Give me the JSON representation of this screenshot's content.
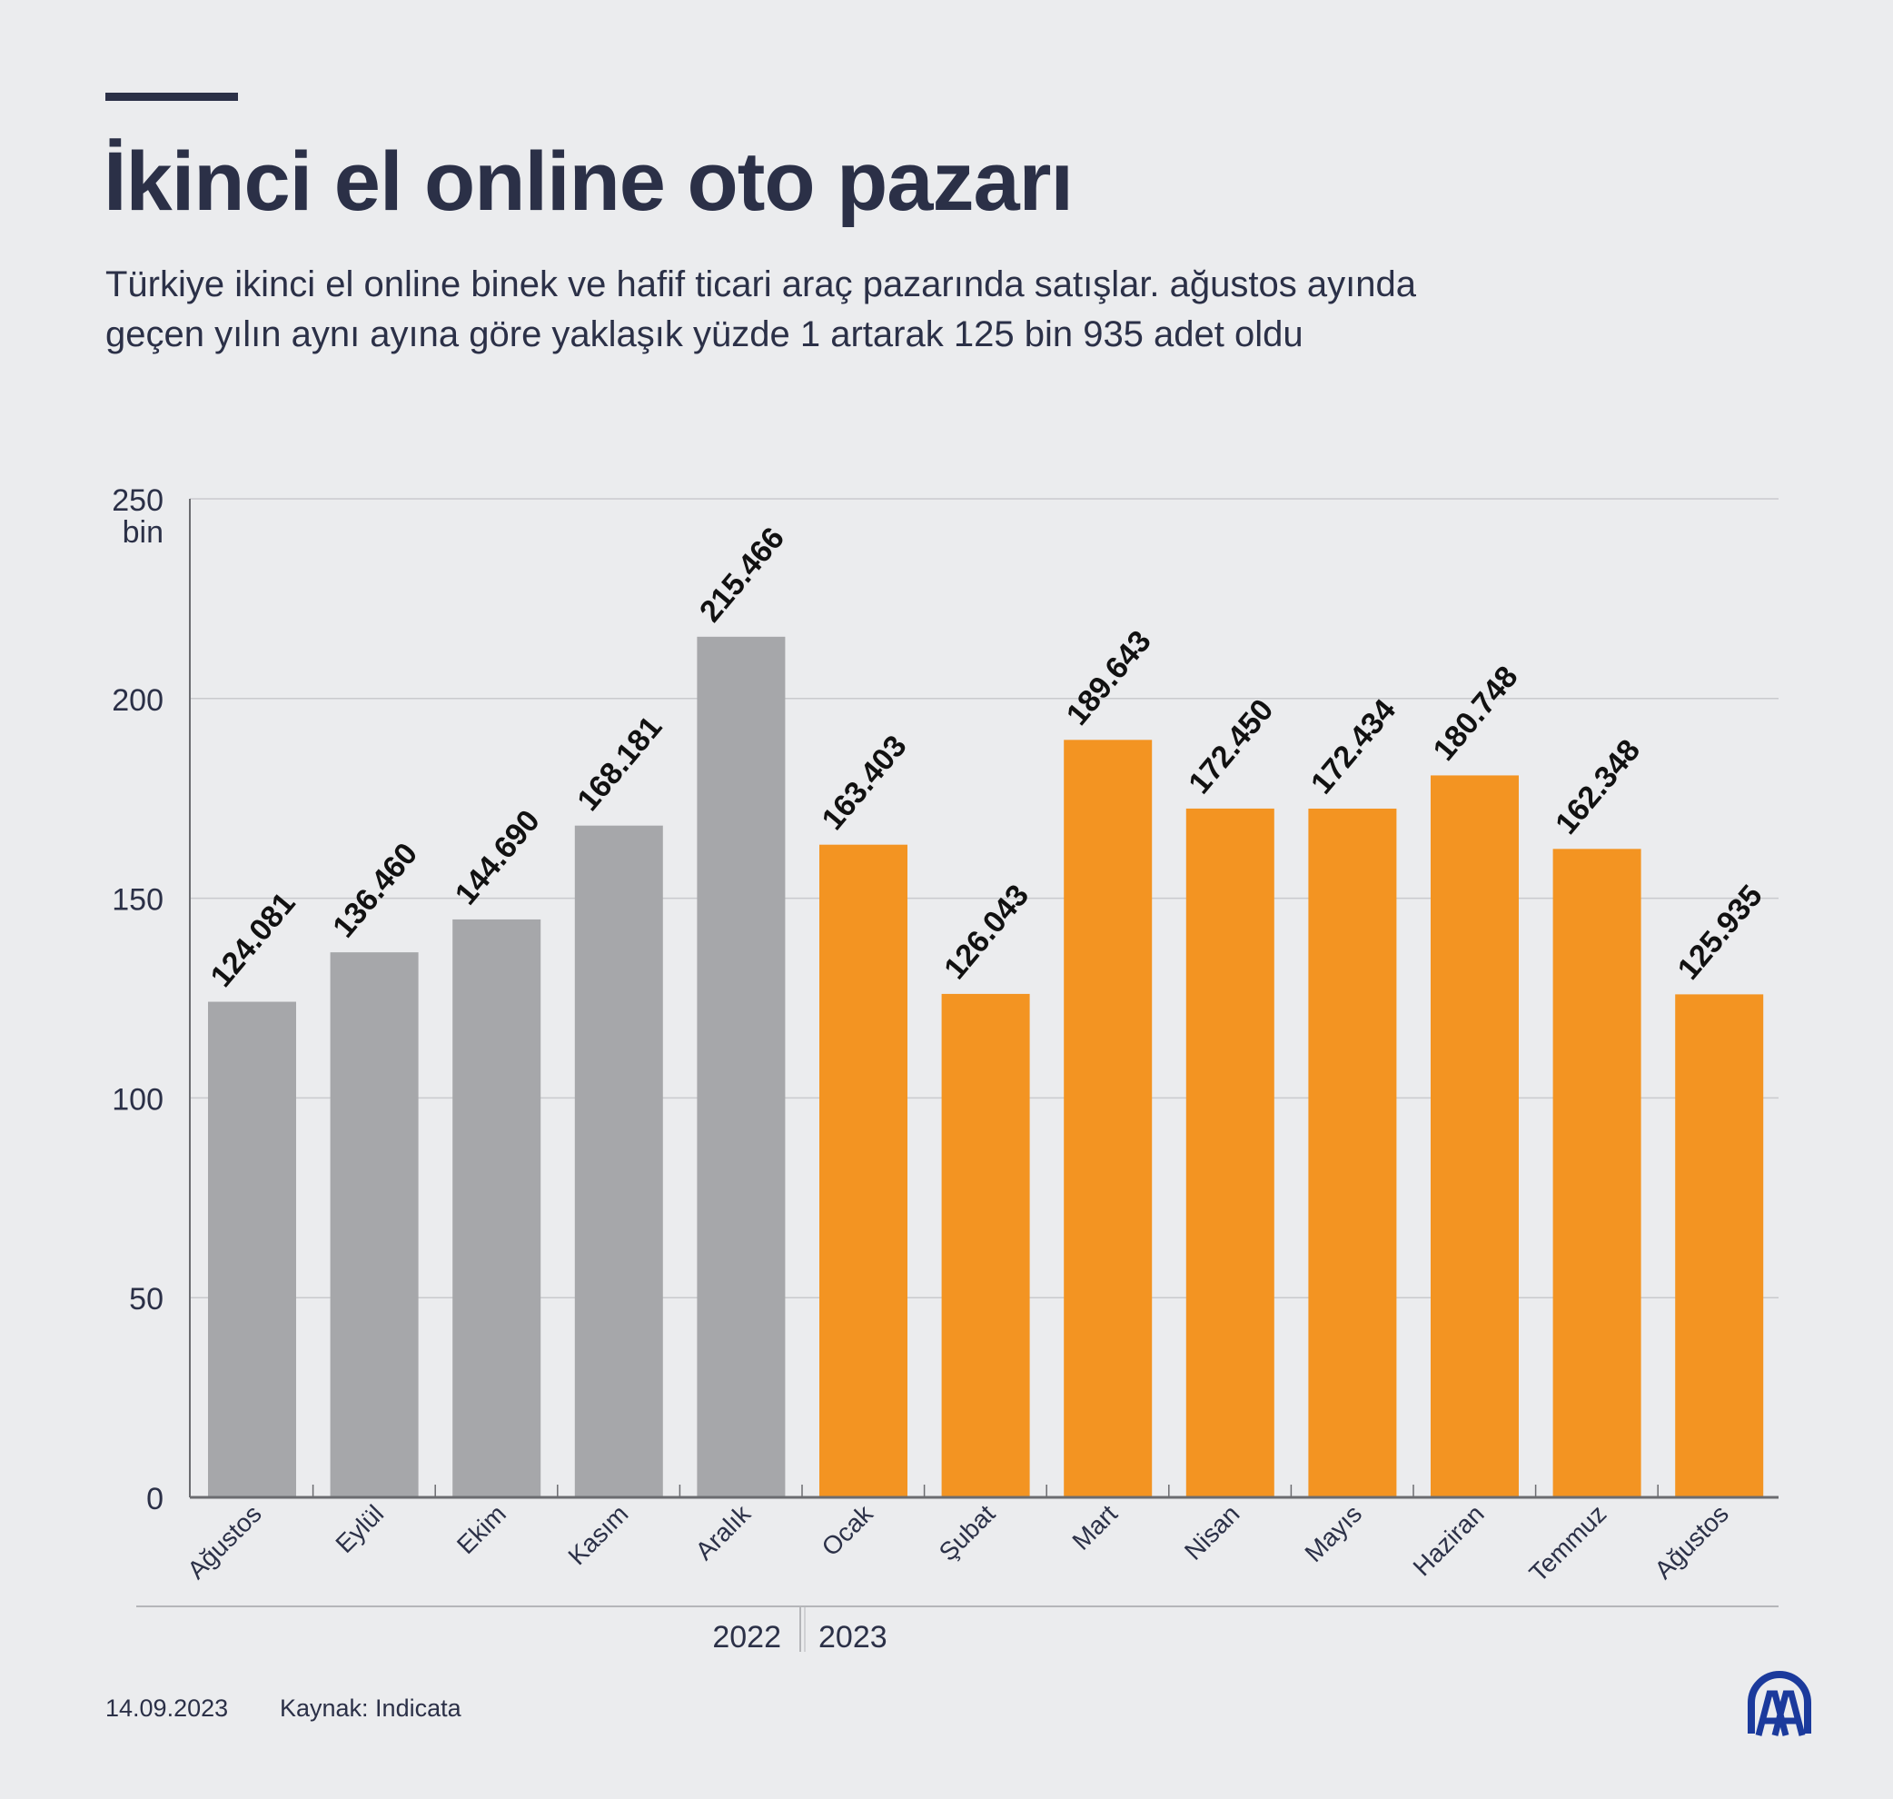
{
  "header": {
    "title": "İkinci el online oto pazarı",
    "subtitle_line1": "Türkiye ikinci el online binek ve hafif ticari araç pazarında satışlar. ağustos ayında",
    "subtitle_line2": "geçen yılın aynı ayına göre yaklaşık yüzde 1 artarak 125 bin 935 adet oldu"
  },
  "footer": {
    "date": "14.09.2023",
    "source": "Kaynak: Indicata",
    "logo": "AA"
  },
  "chart_data": {
    "type": "bar",
    "categories": [
      "Ağustos",
      "Eylül",
      "Ekim",
      "Kasım",
      "Aralık",
      "Ocak",
      "Şubat",
      "Mart",
      "Nisan",
      "Mayıs",
      "Haziran",
      "Temmuz",
      "Ağustos"
    ],
    "values": [
      124081,
      136460,
      144690,
      168181,
      215466,
      163403,
      126043,
      189643,
      172450,
      172434,
      180748,
      162348,
      125935
    ],
    "value_labels": [
      "124.081",
      "136.460",
      "144.690",
      "168.181",
      "215.466",
      "163.403",
      "126.043",
      "189.643",
      "172.450",
      "172.434",
      "180.748",
      "162.348",
      "125.935"
    ],
    "groups": [
      {
        "label": "2022",
        "count": 5,
        "color": "#a6a7aa"
      },
      {
        "label": "2023",
        "count": 8,
        "color": "#f39422"
      }
    ],
    "ylim": [
      0,
      250000
    ],
    "yticks": [
      0,
      50000,
      100000,
      150000,
      200000,
      250000
    ],
    "ytick_labels": [
      "0",
      "50",
      "100",
      "150",
      "200",
      "250"
    ],
    "yunit": "bin",
    "grid": true
  }
}
